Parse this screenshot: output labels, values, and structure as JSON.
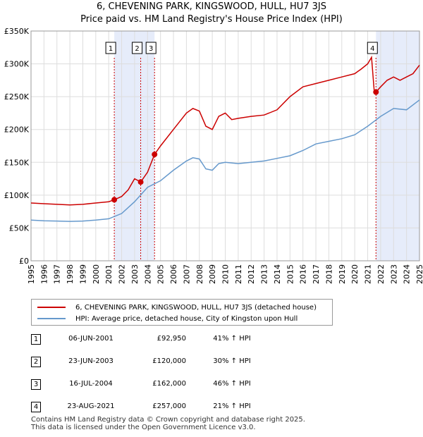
{
  "header": {
    "title_line1": "6, CHEVENING PARK, KINGSWOOD, HULL, HU7 3JS",
    "title_line2": "Price paid vs. HM Land Registry's House Price Index (HPI)"
  },
  "legend": {
    "red_label": "6, CHEVENING PARK, KINGSWOOD, HULL, HU7 3JS (detached house)",
    "blue_label": "HPI: Average price, detached house, City of Kingston upon Hull"
  },
  "sales": [
    {
      "num": "1",
      "date": "06-JUN-2001",
      "price": "£92,950",
      "hpi": "41% ↑ HPI"
    },
    {
      "num": "2",
      "date": "23-JUN-2003",
      "price": "£120,000",
      "hpi": "30% ↑ HPI"
    },
    {
      "num": "3",
      "date": "16-JUL-2004",
      "price": "£162,000",
      "hpi": "46% ↑ HPI"
    },
    {
      "num": "4",
      "date": "23-AUG-2021",
      "price": "£257,000",
      "hpi": "21% ↑ HPI"
    }
  ],
  "footer": {
    "line1": "Contains HM Land Registry data © Crown copyright and database right 2025.",
    "line2": "This data is licensed under the Open Government Licence v3.0."
  },
  "colors": {
    "red": "#cc0000",
    "blue": "#6699cc",
    "shade": "#e6ecfa",
    "grid": "#dddddd"
  },
  "chart_data": {
    "type": "line",
    "title": "6, CHEVENING PARK, KINGSWOOD, HULL, HU7 3JS",
    "subtitle": "Price paid vs. HM Land Registry's House Price Index (HPI)",
    "xlabel": "",
    "ylabel": "",
    "xlim": [
      1995,
      2025
    ],
    "ylim": [
      0,
      350000
    ],
    "x_ticks": [
      1995,
      1996,
      1997,
      1998,
      1999,
      2000,
      2001,
      2002,
      2003,
      2004,
      2005,
      2006,
      2007,
      2008,
      2009,
      2010,
      2011,
      2012,
      2013,
      2014,
      2015,
      2016,
      2017,
      2018,
      2019,
      2020,
      2021,
      2022,
      2023,
      2024,
      2025
    ],
    "y_ticks": [
      {
        "value": 0,
        "label": "£0"
      },
      {
        "value": 50000,
        "label": "£50K"
      },
      {
        "value": 100000,
        "label": "£100K"
      },
      {
        "value": 150000,
        "label": "£150K"
      },
      {
        "value": 200000,
        "label": "£200K"
      },
      {
        "value": 250000,
        "label": "£250K"
      },
      {
        "value": 300000,
        "label": "£300K"
      },
      {
        "value": 350000,
        "label": "£350K"
      }
    ],
    "grid": true,
    "shaded_ranges": [
      [
        2001.43,
        2004.54
      ],
      [
        2021.64,
        2025
      ]
    ],
    "series": [
      {
        "name": "6, CHEVENING PARK, KINGSWOOD, HULL, HU7 3JS (detached house)",
        "color": "#cc0000",
        "x": [
          1995,
          1996,
          1997,
          1998,
          1999,
          2000,
          2001,
          2001.43,
          2002,
          2002.5,
          2003,
          2003.47,
          2004,
          2004.54,
          2005,
          2006,
          2007,
          2007.5,
          2008,
          2008.5,
          2009,
          2009.5,
          2010,
          2010.5,
          2011,
          2012,
          2013,
          2014,
          2015,
          2016,
          2017,
          2018,
          2019,
          2020,
          2020.5,
          2021,
          2021.3,
          2021.5,
          2021.64,
          2022,
          2022.5,
          2023,
          2023.5,
          2024,
          2024.5,
          2025
        ],
        "y": [
          88000,
          87000,
          86000,
          85000,
          86000,
          88000,
          90000,
          92950,
          98000,
          108000,
          125000,
          120000,
          135000,
          162000,
          175000,
          200000,
          225000,
          232000,
          228000,
          205000,
          200000,
          220000,
          225000,
          215000,
          217000,
          220000,
          222000,
          230000,
          250000,
          265000,
          270000,
          275000,
          280000,
          285000,
          292000,
          300000,
          310000,
          260000,
          257000,
          265000,
          275000,
          280000,
          275000,
          280000,
          285000,
          298000
        ]
      },
      {
        "name": "HPI: Average price, detached house, City of Kingston upon Hull",
        "color": "#6699cc",
        "x": [
          1995,
          1996,
          1997,
          1998,
          1999,
          2000,
          2001,
          2002,
          2003,
          2004,
          2005,
          2006,
          2007,
          2007.5,
          2008,
          2008.5,
          2009,
          2009.5,
          2010,
          2011,
          2012,
          2013,
          2014,
          2015,
          2016,
          2017,
          2018,
          2019,
          2020,
          2021,
          2022,
          2023,
          2024,
          2025
        ],
        "y": [
          62000,
          61000,
          60500,
          60000,
          60500,
          62000,
          64000,
          72000,
          90000,
          112000,
          122000,
          138000,
          152000,
          157000,
          155000,
          140000,
          138000,
          148000,
          150000,
          148000,
          150000,
          152000,
          156000,
          160000,
          168000,
          178000,
          182000,
          186000,
          192000,
          205000,
          220000,
          232000,
          230000,
          245000
        ]
      }
    ],
    "markers": [
      {
        "label": "1",
        "x": 2001.43,
        "y": 92950
      },
      {
        "label": "2",
        "x": 2003.47,
        "y": 120000
      },
      {
        "label": "3",
        "x": 2004.54,
        "y": 162000
      },
      {
        "label": "4",
        "x": 2021.64,
        "y": 257000
      }
    ]
  }
}
